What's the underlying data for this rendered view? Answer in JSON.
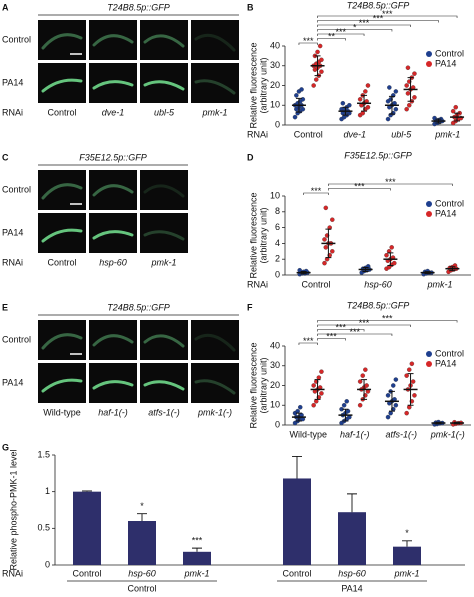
{
  "image_panels": [
    {
      "panel": "A",
      "title": "T24B8.5p::GFP",
      "rows": [
        "Control",
        "PA14"
      ],
      "xlabel": "RNAi",
      "columns": [
        "Control",
        "dve-1",
        "ubl-5",
        "pmk-1"
      ]
    },
    {
      "panel": "C",
      "title": "F35E12.5p::GFP",
      "rows": [
        "Control",
        "PA14"
      ],
      "xlabel": "RNAi",
      "columns": [
        "Control",
        "hsp-60",
        "pmk-1"
      ]
    },
    {
      "panel": "E",
      "title": "T24B8.5p::GFP",
      "rows": [
        "Control",
        "PA14"
      ],
      "columns": [
        "Wild-type",
        "haf-1(-)",
        "atfs-1(-)",
        "pmk-1(-)"
      ]
    }
  ],
  "chart_data": [
    {
      "panel": "B",
      "type": "dotplot",
      "title": "T24B8.5p::GFP",
      "ylabel": [
        "Relative fluorescence",
        "(arbitrary unit)"
      ],
      "xlabel": "RNAi",
      "categories": [
        "Control",
        "dve-1",
        "ubl-5",
        "pmk-1"
      ],
      "ylim": [
        0,
        40
      ],
      "yticks": [
        0,
        10,
        20,
        30,
        40
      ],
      "series": [
        {
          "name": "Control",
          "color": "#1f3f8f",
          "values": [
            [
              4,
              6,
              7,
              8,
              8,
              9,
              10,
              10,
              11,
              12,
              13,
              15,
              17,
              18
            ],
            [
              3,
              4,
              5,
              6,
              6,
              7,
              7,
              8,
              8,
              9,
              10,
              11
            ],
            [
              3,
              5,
              6,
              8,
              9,
              10,
              11,
              12,
              13,
              15,
              17,
              19
            ],
            [
              0.5,
              1,
              1.5,
              2,
              2,
              2.5,
              3,
              3.5
            ]
          ],
          "mean": [
            10,
            7,
            10,
            2
          ],
          "sd": [
            3.5,
            2,
            4.5,
            1
          ]
        },
        {
          "name": "PA14",
          "color": "#d62728",
          "values": [
            [
              20,
              23,
              25,
              27,
              28,
              29,
              30,
              30,
              31,
              32,
              33,
              35,
              37,
              40
            ],
            [
              5,
              6,
              8,
              9,
              10,
              11,
              12,
              13,
              15,
              17,
              20
            ],
            [
              8,
              10,
              12,
              14,
              16,
              18,
              19,
              20,
              22,
              24,
              26,
              29
            ],
            [
              1,
              2,
              3,
              3.5,
              4,
              5,
              6,
              7,
              9
            ]
          ],
          "mean": [
            30,
            11,
            18,
            4
          ],
          "sd": [
            5,
            4,
            6,
            2
          ]
        }
      ],
      "significance": [
        "***",
        "***",
        "***",
        "*",
        "***",
        "**",
        "***"
      ]
    },
    {
      "panel": "D",
      "type": "dotplot",
      "title": "F35E12.5p::GFP",
      "ylabel": [
        "Relative fluorescence",
        "(arbitrary unit)"
      ],
      "xlabel": "RNAi",
      "categories": [
        "Control",
        "hsp-60",
        "pmk-1"
      ],
      "ylim": [
        0,
        10
      ],
      "yticks": [
        0,
        2,
        4,
        6,
        8,
        10
      ],
      "series": [
        {
          "name": "Control",
          "color": "#1f3f8f",
          "values": [
            [
              0.1,
              0.2,
              0.2,
              0.3,
              0.3,
              0.4,
              0.5,
              0.6
            ],
            [
              0.3,
              0.5,
              0.6,
              0.7,
              0.8,
              0.9,
              1.1
            ],
            [
              0.1,
              0.2,
              0.3,
              0.3,
              0.4,
              0.5
            ]
          ],
          "mean": [
            0.3,
            0.7,
            0.3
          ],
          "sd": [
            0.15,
            0.25,
            0.12
          ]
        },
        {
          "name": "PA14",
          "color": "#d62728",
          "values": [
            [
              1.5,
              2,
              2.5,
              3,
              3.5,
              4,
              4,
              4.5,
              5,
              6,
              7,
              8.5
            ],
            [
              0.8,
              1,
              1.3,
              1.5,
              1.8,
              2,
              2.2,
              2.5,
              3,
              3.5
            ],
            [
              0.4,
              0.6,
              0.7,
              0.8,
              0.9,
              1,
              1.2
            ]
          ],
          "mean": [
            4,
            2,
            0.8
          ],
          "sd": [
            1.8,
            0.8,
            0.25
          ]
        }
      ],
      "significance": [
        "***",
        "***",
        "***"
      ]
    },
    {
      "panel": "F",
      "type": "dotplot",
      "title": "T24B8.5p::GFP",
      "ylabel": [
        "Relative fluorescence",
        "(arbitrary unit)"
      ],
      "categories": [
        "Wild-type",
        "haf-1(-)",
        "atfs-1(-)",
        "pmk-1(-)"
      ],
      "ylim": [
        0,
        40
      ],
      "yticks": [
        0,
        10,
        20,
        30,
        40
      ],
      "series": [
        {
          "name": "Control",
          "color": "#1f3f8f",
          "values": [
            [
              1,
              2,
              3,
              3,
              4,
              4,
              5,
              6,
              7,
              9
            ],
            [
              1,
              2,
              3,
              4,
              5,
              6,
              7,
              8,
              10,
              12
            ],
            [
              4,
              6,
              8,
              10,
              11,
              12,
              13,
              15,
              17,
              20,
              23
            ],
            [
              0.3,
              0.5,
              0.8,
              1,
              1.2,
              1.5
            ]
          ],
          "mean": [
            4,
            5,
            12,
            1
          ],
          "sd": [
            2,
            3,
            5,
            0.4
          ]
        },
        {
          "name": "PA14",
          "color": "#d62728",
          "values": [
            [
              10,
              12,
              14,
              16,
              17,
              18,
              19,
              20,
              22,
              24,
              27
            ],
            [
              10,
              13,
              15,
              17,
              18,
              19,
              20,
              22,
              25,
              28
            ],
            [
              6,
              9,
              12,
              15,
              18,
              20,
              22,
              25,
              28,
              31
            ],
            [
              0.3,
              0.6,
              0.9,
              1.1,
              1.4
            ]
          ],
          "mean": [
            18,
            18,
            18,
            1
          ],
          "sd": [
            5,
            5,
            8,
            0.4
          ]
        }
      ],
      "significance": [
        "***",
        "***",
        "***",
        "***",
        "***",
        "***"
      ]
    },
    {
      "panel": "G",
      "type": "bar",
      "ylabel": "Relative phospho-PMK-1 level",
      "xlabel": "RNAi",
      "categories": [
        "Control",
        "hsp-60",
        "pmk-1",
        "Control",
        "hsp-60",
        "pmk-1"
      ],
      "groups": [
        "Control",
        "PA14"
      ],
      "values": [
        1,
        0.6,
        0.18,
        1.18,
        0.72,
        0.25
      ],
      "errors": [
        0.01,
        0.1,
        0.05,
        0.3,
        0.25,
        0.08
      ],
      "significance": [
        null,
        "*",
        "***",
        null,
        null,
        "*"
      ],
      "color": "#2e2f6b",
      "ylim": [
        0,
        1.5
      ],
      "yticks": [
        0,
        0.5,
        1,
        1.5
      ]
    }
  ]
}
